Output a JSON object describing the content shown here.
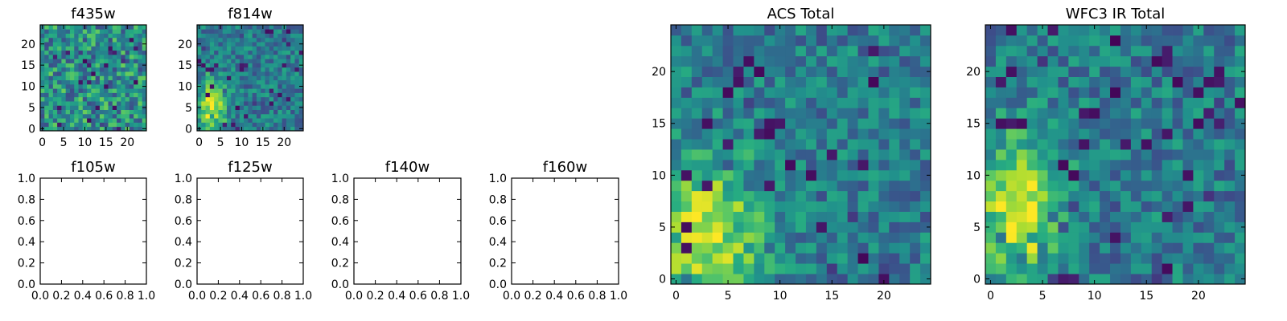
{
  "figure": {
    "colormap": "viridis",
    "colors": {
      "viridis_low": "#440154",
      "viridis_mid": "#21918c",
      "viridis_high": "#fde725",
      "frame": "#000000",
      "background": "#ffffff"
    }
  },
  "chart_data": [
    {
      "id": "f435w",
      "type": "heatmap",
      "title": "f435w",
      "grid": [
        25,
        25
      ],
      "xlim": [
        -0.5,
        24.5
      ],
      "ylim": [
        -0.5,
        24.5
      ],
      "xticks": [
        "0",
        "5",
        "10",
        "15",
        "20"
      ],
      "yticks": [
        "0",
        "5",
        "10",
        "15",
        "20"
      ],
      "pattern": "noise",
      "seed": 11,
      "blobs": []
    },
    {
      "id": "f814w",
      "type": "heatmap",
      "title": "f814w",
      "grid": [
        25,
        25
      ],
      "xlim": [
        -0.5,
        24.5
      ],
      "ylim": [
        -0.5,
        24.5
      ],
      "xticks": [
        "0",
        "5",
        "10",
        "15",
        "20"
      ],
      "yticks": [
        "0",
        "5",
        "10",
        "15",
        "20"
      ],
      "pattern": "blob",
      "seed": 23,
      "blobs": [
        {
          "x": 3,
          "y": 5,
          "sx": 2.2,
          "sy": 4.5,
          "amp": 0.55
        }
      ]
    },
    {
      "id": "f105w",
      "type": "heatmap",
      "title": "f105w",
      "empty": true,
      "xlim": [
        0,
        1
      ],
      "ylim": [
        0,
        1
      ],
      "xticks": [
        "0.0",
        "0.2",
        "0.4",
        "0.6",
        "0.8",
        "1.0"
      ],
      "yticks": [
        "0.0",
        "0.2",
        "0.4",
        "0.6",
        "0.8",
        "1.0"
      ]
    },
    {
      "id": "f125w",
      "type": "heatmap",
      "title": "f125w",
      "empty": true,
      "xlim": [
        0,
        1
      ],
      "ylim": [
        0,
        1
      ],
      "xticks": [
        "0.0",
        "0.2",
        "0.4",
        "0.6",
        "0.8",
        "1.0"
      ],
      "yticks": [
        "0.0",
        "0.2",
        "0.4",
        "0.6",
        "0.8",
        "1.0"
      ]
    },
    {
      "id": "f140w",
      "type": "heatmap",
      "title": "f140w",
      "empty": true,
      "xlim": [
        0,
        1
      ],
      "ylim": [
        0,
        1
      ],
      "xticks": [
        "0.0",
        "0.2",
        "0.4",
        "0.6",
        "0.8",
        "1.0"
      ],
      "yticks": [
        "0.0",
        "0.2",
        "0.4",
        "0.6",
        "0.8",
        "1.0"
      ]
    },
    {
      "id": "f160w",
      "type": "heatmap",
      "title": "f160w",
      "empty": true,
      "xlim": [
        0,
        1
      ],
      "ylim": [
        0,
        1
      ],
      "xticks": [
        "0.0",
        "0.2",
        "0.4",
        "0.6",
        "0.8",
        "1.0"
      ],
      "yticks": [
        "0.0",
        "0.2",
        "0.4",
        "0.6",
        "0.8",
        "1.0"
      ]
    },
    {
      "id": "acs-total",
      "type": "heatmap",
      "title": "ACS Total",
      "grid": [
        25,
        25
      ],
      "xlim": [
        -0.5,
        24.5
      ],
      "ylim": [
        -0.5,
        24.5
      ],
      "xticks": [
        "0",
        "5",
        "10",
        "15",
        "20"
      ],
      "yticks": [
        "0",
        "5",
        "10",
        "15",
        "20"
      ],
      "pattern": "blob",
      "seed": 37,
      "blobs": [
        {
          "x": 3,
          "y": 4,
          "sx": 3.5,
          "sy": 5.5,
          "amp": 0.5
        }
      ]
    },
    {
      "id": "wfc3-ir-total",
      "type": "heatmap",
      "title": "WFC3 IR Total",
      "grid": [
        25,
        25
      ],
      "xlim": [
        -0.5,
        24.5
      ],
      "ylim": [
        -0.5,
        24.5
      ],
      "xticks": [
        "0",
        "5",
        "10",
        "15",
        "20"
      ],
      "yticks": [
        "0",
        "5",
        "10",
        "15",
        "20"
      ],
      "pattern": "blob",
      "seed": 59,
      "blobs": [
        {
          "x": 3,
          "y": 7,
          "sx": 2.6,
          "sy": 4.5,
          "amp": 0.6
        }
      ]
    }
  ]
}
